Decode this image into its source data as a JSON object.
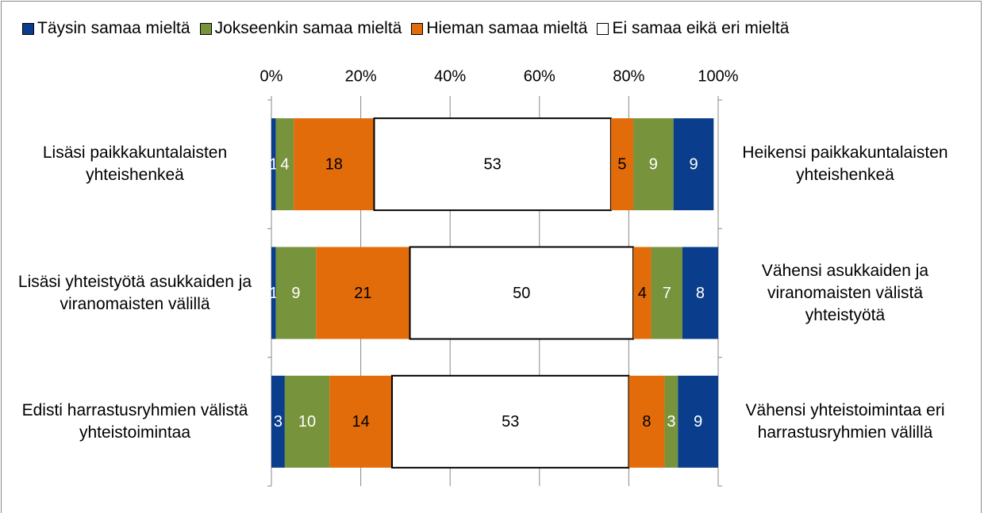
{
  "chart_data": {
    "type": "bar",
    "orientation": "horizontal",
    "stacked": true,
    "categories": [
      "Lisäsi paikkakuntalaisten yhteishenkeä",
      "Lisäsi yhteistyötä asukkaiden ja viranomaisten välillä",
      "Edisti harrastusryhmien välistä yhteistoimintaa"
    ],
    "right_labels": [
      "Heikensi paikkakuntalaisten yhteishenkeä",
      "Vähensi asukkaiden ja viranomaisten välistä yhteistyötä",
      "Vähensi yhteistoimintaa eri harrastusryhmien välillä"
    ],
    "series": [
      {
        "name": "Täysin samaa mieltä",
        "color": "#0a3e8c",
        "label_color": "#ffffff",
        "values": [
          1,
          1,
          3
        ]
      },
      {
        "name": "Jokseenkin samaa mieltä",
        "color": "#77933c",
        "label_color": "#ffffff",
        "values": [
          4,
          9,
          10
        ]
      },
      {
        "name": "Hieman samaa mieltä",
        "color": "#e36c0a",
        "label_color": "#000000",
        "values": [
          18,
          21,
          14
        ]
      },
      {
        "name": "Ei samaa eikä eri mieltä",
        "color": "#ffffff",
        "label_color": "#000000",
        "values": [
          53,
          50,
          53
        ]
      },
      {
        "color": "#e36c0a",
        "label_color": "#000000",
        "values": [
          5,
          4,
          8
        ]
      },
      {
        "color": "#77933c",
        "label_color": "#ffffff",
        "values": [
          9,
          7,
          3
        ]
      },
      {
        "color": "#0a3e8c",
        "label_color": "#ffffff",
        "values": [
          9,
          8,
          9
        ]
      }
    ],
    "xlim": [
      0,
      100
    ],
    "xticks": [
      {
        "value": 0,
        "label": "0%"
      },
      {
        "value": 20,
        "label": "20%"
      },
      {
        "value": 40,
        "label": "40%"
      },
      {
        "value": 60,
        "label": "60%"
      },
      {
        "value": 80,
        "label": "80%"
      },
      {
        "value": 100,
        "label": "100%"
      }
    ],
    "grid": true
  }
}
